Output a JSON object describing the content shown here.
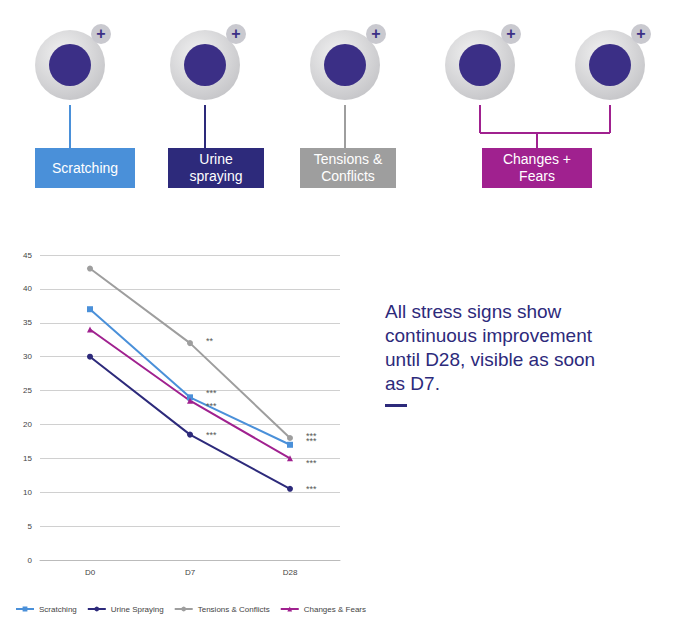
{
  "badges": [
    {
      "label": "Scratching",
      "color": "#4a90d9"
    },
    {
      "label": "Urine spraying",
      "color": "#2d2a7b"
    },
    {
      "label": "Tensions & Conflicts",
      "color": "#9e9e9e"
    },
    {
      "label": "Changes + Fears",
      "color": "#a0218f"
    }
  ],
  "headline": "All stress signs show continuous improvement until D28, visible as soon as D7.",
  "chart_data": {
    "type": "line",
    "categories": [
      "D0",
      "D7",
      "D28"
    ],
    "series": [
      {
        "name": "Scratching",
        "color": "#4a90d9",
        "marker": "square",
        "values": [
          37,
          24,
          17
        ],
        "annotations": [
          null,
          "***",
          "***"
        ]
      },
      {
        "name": "Urine Spraying",
        "color": "#2d2a7b",
        "marker": "circle",
        "values": [
          30,
          18.5,
          10.5
        ],
        "annotations": [
          null,
          "***",
          "***"
        ]
      },
      {
        "name": "Tensions & Conflicts",
        "color": "#9e9e9e",
        "marker": "circle",
        "values": [
          43,
          32,
          18
        ],
        "annotations": [
          null,
          "**",
          "***"
        ]
      },
      {
        "name": "Changes & Fears",
        "color": "#a0218f",
        "marker": "triangle",
        "values": [
          34,
          23.5,
          15
        ],
        "annotations": [
          null,
          "***",
          "***"
        ]
      }
    ],
    "ylim": [
      0,
      45
    ],
    "yticks": [
      0,
      5,
      10,
      15,
      20,
      25,
      30,
      35,
      40,
      45
    ],
    "grid": true,
    "legend": "bottom"
  }
}
